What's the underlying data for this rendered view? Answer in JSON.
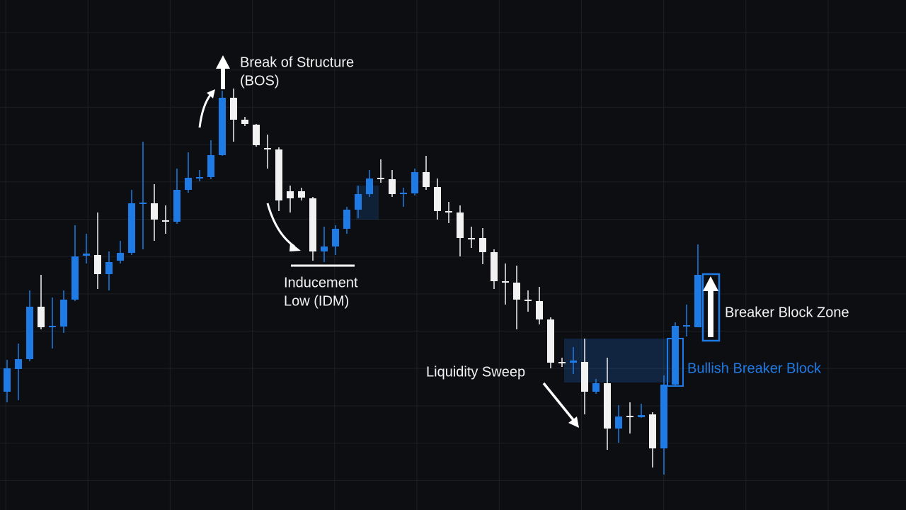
{
  "chart_data": {
    "type": "candlestick",
    "up_color": "#1e7be6",
    "down_color": "#f2f2f2",
    "ylim": [
      0,
      720
    ],
    "open": [
      167,
      199,
      213,
      287,
      258,
      259,
      297,
      359,
      360,
      333,
      352,
      363,
      432,
      433,
      409,
      407,
      452,
      468,
      470,
      501,
      582,
      551,
      544,
      511,
      509,
      450,
      450,
      440,
      365,
      372,
      397,
      424,
      446,
      469,
      467,
      446,
      447,
      477,
      456,
      422,
      420,
      384,
      384,
      364,
      323,
      321,
      297,
      295,
      269,
      209,
      208,
      209,
      167,
      179,
      115,
      133,
      131,
      135,
      87,
      177,
      259,
      258
    ],
    "high": [
      212,
      235,
      310,
      332,
      300,
      310,
      402,
      390,
      420,
      365,
      380,
      452,
      520,
      460,
      430,
      482,
      505,
      480,
      522,
      592,
      595,
      555,
      545,
      530,
      512,
      458,
      455,
      442,
      400,
      402,
      428,
      458,
      480,
      495,
      480,
      455,
      482,
      500,
      468,
      435,
      430,
      400,
      398,
      368,
      348,
      345,
      310,
      315,
      272,
      215,
      230,
      242,
      185,
      215,
      148,
      152,
      150,
      138,
      190,
      265,
      290,
      375
    ],
    "low": [
      152,
      155,
      210,
      255,
      228,
      250,
      295,
      348,
      312,
      310,
      348,
      360,
      368,
      380,
      390,
      404,
      448,
      464,
      467,
      500,
      520,
      542,
      513,
      482,
      422,
      420,
      437,
      352,
      350,
      360,
      390,
      412,
      442,
      462,
      442,
      428,
      444,
      452,
      410,
      405,
      358,
      370,
      347,
      312,
      290,
      255,
      280,
      262,
      200,
      202,
      192,
      135,
      164,
      85,
      95,
      108,
      130,
      60,
      50,
      175,
      245,
      258
    ],
    "close": [
      200,
      213,
      287,
      258,
      260,
      297,
      358,
      362,
      333,
      350,
      363,
      433,
      434,
      410,
      407,
      452,
      469,
      470,
      501,
      582,
      551,
      545,
      515,
      509,
      437,
      440,
      441,
      365,
      372,
      397,
      424,
      446,
      468,
      467,
      446,
      448,
      477,
      456,
      422,
      420,
      384,
      382,
      364,
      323,
      321,
      297,
      295,
      269,
      208,
      207,
      211,
      167,
      179,
      115,
      132,
      131,
      134,
      87,
      177,
      260,
      261,
      332
    ],
    "annotations": [
      {
        "lines": [
          "Break of Structure",
          "(BOS)"
        ]
      },
      {
        "lines": [
          "Inducement",
          "Low (IDM)"
        ]
      },
      {
        "lines": [
          "Liquidity Sweep"
        ]
      },
      {
        "lines": [
          "Breaker Block Zone"
        ]
      },
      {
        "lines": [
          "Bullish Breaker Block"
        ]
      }
    ]
  }
}
